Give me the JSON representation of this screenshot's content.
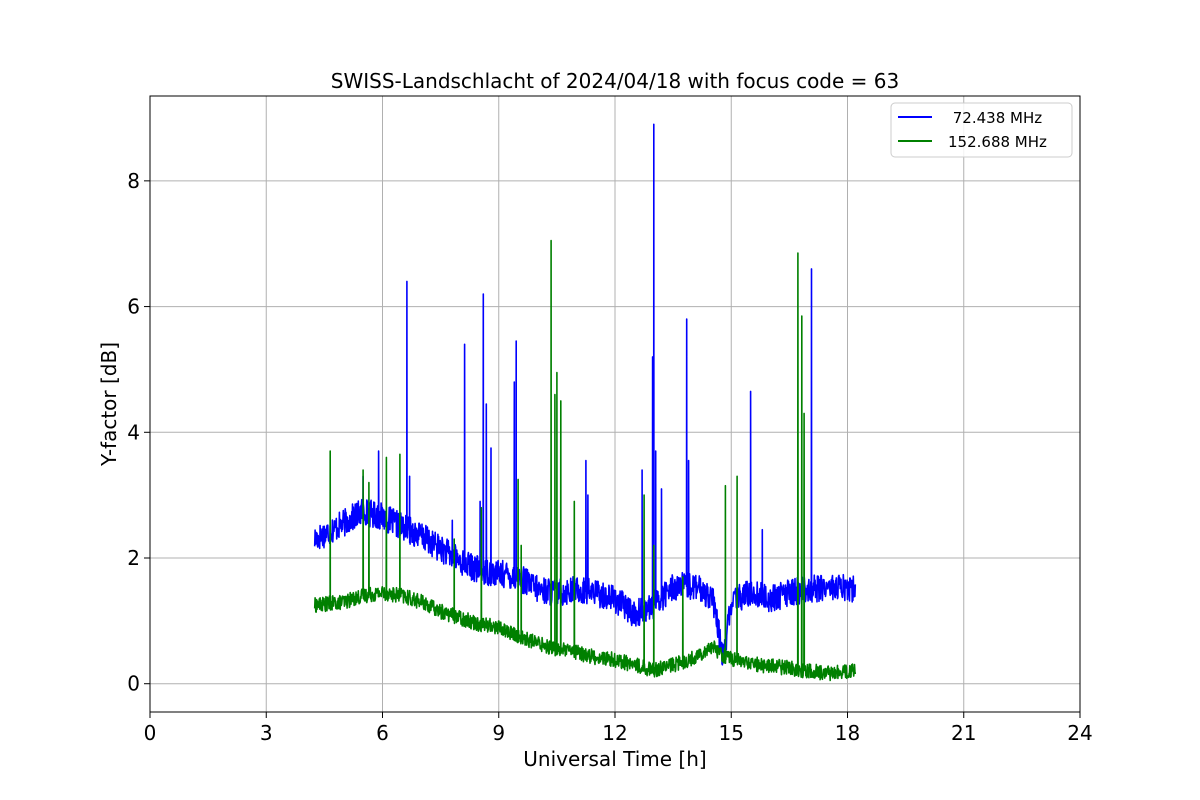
{
  "chart_data": {
    "type": "line",
    "title": "SWISS-Landschlacht of 2024/04/18 with focus code = 63",
    "xlabel": "Universal Time [h]",
    "ylabel": "Y-factor [dB]",
    "xlim": [
      0,
      24
    ],
    "ylim": [
      -0.45,
      9.35
    ],
    "xticks": [
      0,
      3,
      6,
      9,
      12,
      15,
      18,
      21,
      24
    ],
    "yticks": [
      0,
      2,
      4,
      6,
      8
    ],
    "grid": true,
    "legend_position": "top-right",
    "series": [
      {
        "name": " 72.438 MHz",
        "color": "#0000ff",
        "baseline": [
          [
            4.25,
            2.3
          ],
          [
            5.0,
            2.55
          ],
          [
            5.5,
            2.75
          ],
          [
            6.0,
            2.65
          ],
          [
            6.5,
            2.5
          ],
          [
            7.0,
            2.35
          ],
          [
            7.5,
            2.15
          ],
          [
            8.0,
            1.95
          ],
          [
            8.5,
            1.8
          ],
          [
            9.0,
            1.75
          ],
          [
            9.5,
            1.7
          ],
          [
            10.0,
            1.5
          ],
          [
            10.5,
            1.45
          ],
          [
            11.0,
            1.5
          ],
          [
            11.5,
            1.45
          ],
          [
            12.0,
            1.35
          ],
          [
            12.5,
            1.1
          ],
          [
            13.0,
            1.25
          ],
          [
            13.5,
            1.55
          ],
          [
            14.0,
            1.55
          ],
          [
            14.5,
            1.4
          ],
          [
            14.8,
            0.4
          ],
          [
            15.0,
            1.3
          ],
          [
            15.5,
            1.45
          ],
          [
            16.0,
            1.35
          ],
          [
            16.5,
            1.45
          ],
          [
            17.0,
            1.5
          ],
          [
            17.5,
            1.55
          ],
          [
            18.2,
            1.5
          ]
        ],
        "noise": 0.22,
        "spikes": [
          [
            5.5,
            3.3
          ],
          [
            5.9,
            3.7
          ],
          [
            6.63,
            6.4
          ],
          [
            6.7,
            3.3
          ],
          [
            7.8,
            2.6
          ],
          [
            8.12,
            5.4
          ],
          [
            8.52,
            2.9
          ],
          [
            8.6,
            6.2
          ],
          [
            8.68,
            4.45
          ],
          [
            8.8,
            3.75
          ],
          [
            9.4,
            4.8
          ],
          [
            9.45,
            5.45
          ],
          [
            11.25,
            3.55
          ],
          [
            11.3,
            3.0
          ],
          [
            12.7,
            3.4
          ],
          [
            12.97,
            5.2
          ],
          [
            13.0,
            8.9
          ],
          [
            13.05,
            3.7
          ],
          [
            13.2,
            3.1
          ],
          [
            13.85,
            5.8
          ],
          [
            13.9,
            3.55
          ],
          [
            15.5,
            4.65
          ],
          [
            15.8,
            2.45
          ],
          [
            17.07,
            6.6
          ]
        ]
      },
      {
        "name": "152.688 MHz",
        "color": "#008000",
        "baseline": [
          [
            4.25,
            1.25
          ],
          [
            5.0,
            1.3
          ],
          [
            5.5,
            1.4
          ],
          [
            6.0,
            1.45
          ],
          [
            6.5,
            1.4
          ],
          [
            7.0,
            1.3
          ],
          [
            7.5,
            1.15
          ],
          [
            8.0,
            1.05
          ],
          [
            8.5,
            0.95
          ],
          [
            9.0,
            0.9
          ],
          [
            9.5,
            0.75
          ],
          [
            10.0,
            0.65
          ],
          [
            10.5,
            0.55
          ],
          [
            11.0,
            0.5
          ],
          [
            11.5,
            0.42
          ],
          [
            12.0,
            0.38
          ],
          [
            12.5,
            0.3
          ],
          [
            13.0,
            0.22
          ],
          [
            13.5,
            0.3
          ],
          [
            14.0,
            0.4
          ],
          [
            14.5,
            0.6
          ],
          [
            14.8,
            0.45
          ],
          [
            15.0,
            0.4
          ],
          [
            15.5,
            0.32
          ],
          [
            16.0,
            0.28
          ],
          [
            16.5,
            0.25
          ],
          [
            17.0,
            0.2
          ],
          [
            17.5,
            0.17
          ],
          [
            18.2,
            0.2
          ]
        ],
        "noise": 0.12,
        "spikes": [
          [
            4.65,
            3.7
          ],
          [
            5.5,
            3.4
          ],
          [
            5.65,
            3.2
          ],
          [
            6.1,
            3.6
          ],
          [
            6.45,
            3.65
          ],
          [
            7.85,
            2.3
          ],
          [
            8.55,
            2.8
          ],
          [
            9.5,
            3.25
          ],
          [
            9.58,
            2.2
          ],
          [
            10.35,
            7.05
          ],
          [
            10.45,
            4.6
          ],
          [
            10.5,
            4.95
          ],
          [
            10.6,
            4.5
          ],
          [
            10.95,
            2.9
          ],
          [
            12.75,
            3.0
          ],
          [
            13.0,
            2.2
          ],
          [
            13.75,
            1.7
          ],
          [
            14.85,
            3.15
          ],
          [
            15.15,
            3.3
          ],
          [
            16.72,
            6.85
          ],
          [
            16.82,
            5.85
          ],
          [
            16.88,
            4.3
          ]
        ]
      }
    ]
  }
}
